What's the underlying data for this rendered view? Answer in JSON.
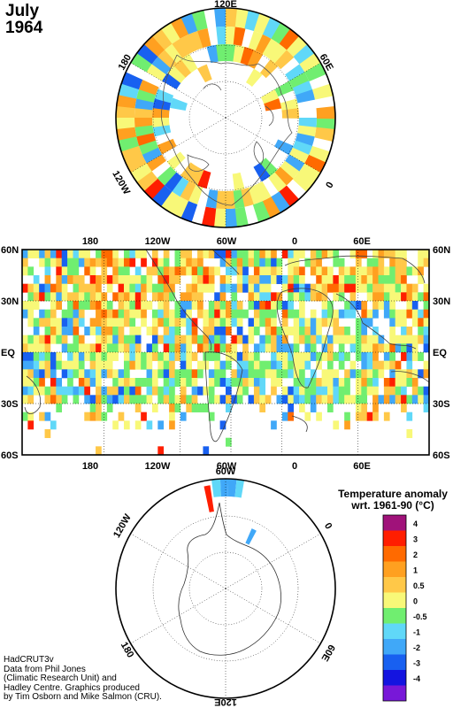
{
  "title": {
    "month": "July",
    "year": "1964"
  },
  "legend": {
    "title_line1": "Temperature anomaly",
    "title_line2": "wrt. 1961-90  (°C)",
    "bins": [
      {
        "label": "4",
        "color": "#a0127a"
      },
      {
        "label": "3",
        "color": "#ff1e00"
      },
      {
        "label": "2",
        "color": "#ff6a00"
      },
      {
        "label": "1",
        "color": "#ffa020"
      },
      {
        "label": "0.5",
        "color": "#ffc848"
      },
      {
        "label": "0",
        "color": "#f8f878"
      },
      {
        "label": "-0.5",
        "color": "#70ee70"
      },
      {
        "label": "-1",
        "color": "#60d8f8"
      },
      {
        "label": "-2",
        "color": "#40a8f8"
      },
      {
        "label": "-3",
        "color": "#1860f0"
      },
      {
        "label": "-4",
        "color": "#1414e0"
      },
      {
        "label": "",
        "color": "#7818d8"
      }
    ]
  },
  "map_main": {
    "lat_labels": [
      "60N",
      "30N",
      "EQ",
      "30S",
      "60S"
    ],
    "lon_labels": [
      "180",
      "120W",
      "60W",
      "0",
      "60E"
    ]
  },
  "map_north": {
    "labels": [
      "120E",
      "60E",
      "0",
      "120W",
      "180"
    ]
  },
  "map_south": {
    "labels": [
      "60W",
      "0",
      "60E",
      "120E",
      "180",
      "120W"
    ]
  },
  "credits": [
    "HadCRUT3v",
    "Data from Phil Jones",
    "(Climatic Research Unit) and",
    "Hadley Centre.  Graphics produced",
    "by Tim Osborn and Mike Salmon (CRU)."
  ]
}
